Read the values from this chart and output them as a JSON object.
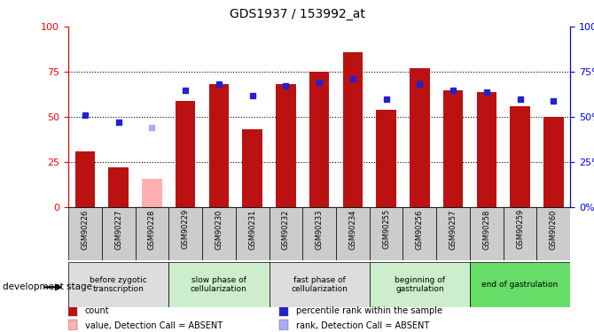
{
  "title": "GDS1937 / 153992_at",
  "samples": [
    "GSM90226",
    "GSM90227",
    "GSM90228",
    "GSM90229",
    "GSM90230",
    "GSM90231",
    "GSM90232",
    "GSM90233",
    "GSM90234",
    "GSM90255",
    "GSM90256",
    "GSM90257",
    "GSM90258",
    "GSM90259",
    "GSM90260"
  ],
  "bar_values": [
    31,
    22,
    null,
    59,
    68,
    43,
    68,
    75,
    86,
    54,
    77,
    65,
    64,
    56,
    50
  ],
  "bar_absent_values": [
    null,
    null,
    16,
    null,
    null,
    null,
    null,
    null,
    null,
    null,
    null,
    null,
    null,
    null,
    null
  ],
  "rank_values": [
    51,
    47,
    null,
    65,
    68,
    62,
    67,
    69,
    71,
    60,
    68,
    65,
    64,
    60,
    59
  ],
  "rank_absent_values": [
    null,
    null,
    44,
    null,
    null,
    null,
    null,
    null,
    null,
    null,
    null,
    null,
    null,
    null,
    null
  ],
  "bar_color": "#BB1111",
  "bar_absent_color": "#FFB0B0",
  "rank_color": "#2222CC",
  "rank_absent_color": "#AAAAFF",
  "groups": [
    {
      "label": "before zygotic\ntranscription",
      "start": 0,
      "end": 3,
      "color": "#DDDDDD"
    },
    {
      "label": "slow phase of\ncellularization",
      "start": 3,
      "end": 6,
      "color": "#CCEECC"
    },
    {
      "label": "fast phase of\ncellularization",
      "start": 6,
      "end": 9,
      "color": "#DDDDDD"
    },
    {
      "label": "beginning of\ngastrulation",
      "start": 9,
      "end": 12,
      "color": "#CCEECC"
    },
    {
      "label": "end of gastrulation",
      "start": 12,
      "end": 15,
      "color": "#66DD66"
    }
  ],
  "ylim": [
    0,
    100
  ],
  "yticks": [
    0,
    25,
    50,
    75,
    100
  ],
  "legend_items": [
    {
      "label": "count",
      "color": "#BB1111"
    },
    {
      "label": "percentile rank within the sample",
      "color": "#2222CC"
    },
    {
      "label": "value, Detection Call = ABSENT",
      "color": "#FFB0B0"
    },
    {
      "label": "rank, Detection Call = ABSENT",
      "color": "#AAAAFF"
    }
  ]
}
